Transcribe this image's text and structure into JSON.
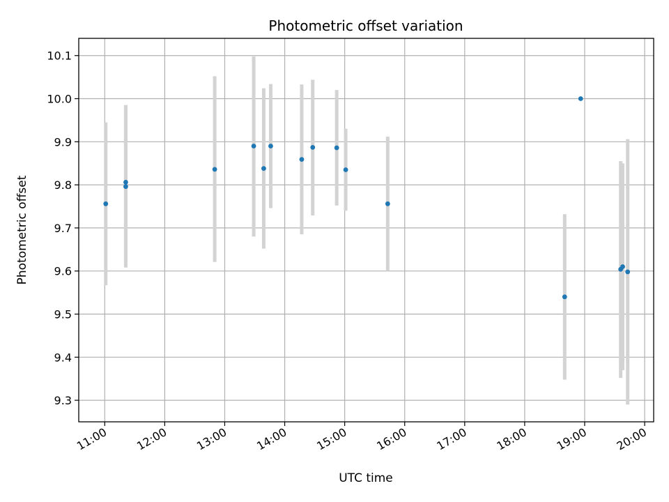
{
  "chart_data": {
    "type": "scatter",
    "title": "Photometric offset variation",
    "xlabel": "UTC time",
    "ylabel": "Photometric offset",
    "x_ticks": [
      "11:00",
      "12:00",
      "13:00",
      "14:00",
      "15:00",
      "16:00",
      "17:00",
      "18:00",
      "19:00",
      "20:00"
    ],
    "y_ticks": [
      "9.3",
      "9.4",
      "9.5",
      "9.6",
      "9.7",
      "9.8",
      "9.9",
      "10.0",
      "10.1"
    ],
    "xlim": [
      "10:34",
      "20:09"
    ],
    "ylim": [
      9.25,
      10.14
    ],
    "grid": true,
    "error_bar_color": "#d3d3d3",
    "point_color": "#1f77b4",
    "points": [
      {
        "x": "11:01",
        "y": 9.756,
        "err_low": 9.567,
        "err_high": 9.945
      },
      {
        "x": "11:21",
        "y": 9.796,
        "err_low": 9.608,
        "err_high": 9.985
      },
      {
        "x": "11:21",
        "y": 9.806,
        "err_low": 9.625,
        "err_high": 9.985
      },
      {
        "x": "12:50",
        "y": 9.836,
        "err_low": 9.621,
        "err_high": 10.052
      },
      {
        "x": "13:29",
        "y": 9.89,
        "err_low": 9.68,
        "err_high": 10.098
      },
      {
        "x": "13:39",
        "y": 9.838,
        "err_low": 9.652,
        "err_high": 10.024
      },
      {
        "x": "13:46",
        "y": 9.89,
        "err_low": 9.746,
        "err_high": 10.034
      },
      {
        "x": "14:17",
        "y": 9.859,
        "err_low": 9.685,
        "err_high": 10.033
      },
      {
        "x": "14:28",
        "y": 9.887,
        "err_low": 9.729,
        "err_high": 10.044
      },
      {
        "x": "14:52",
        "y": 9.886,
        "err_low": 9.752,
        "err_high": 10.02
      },
      {
        "x": "15:01",
        "y": 9.835,
        "err_low": 9.74,
        "err_high": 9.93
      },
      {
        "x": "15:43",
        "y": 9.756,
        "err_low": 9.6,
        "err_high": 9.912
      },
      {
        "x": "18:40",
        "y": 9.54,
        "err_low": 9.348,
        "err_high": 9.732
      },
      {
        "x": "18:56",
        "y": 10.0,
        "err_low": 9.998,
        "err_high": 10.002
      },
      {
        "x": "19:36",
        "y": 9.604,
        "err_low": 9.352,
        "err_high": 9.855
      },
      {
        "x": "19:38",
        "y": 9.61,
        "err_low": 9.37,
        "err_high": 9.85
      },
      {
        "x": "19:43",
        "y": 9.598,
        "err_low": 9.29,
        "err_high": 9.906
      }
    ]
  }
}
